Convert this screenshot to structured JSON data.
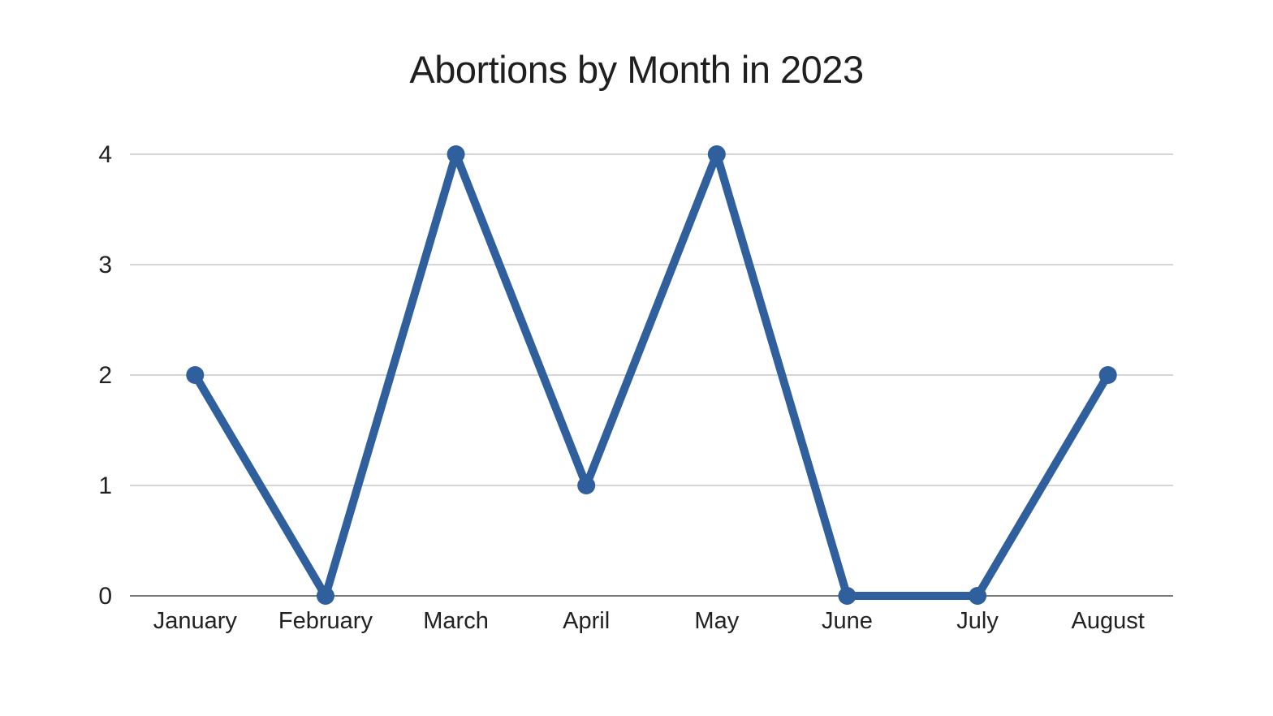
{
  "chart_data": {
    "type": "line",
    "title": "Abortions by Month in 2023",
    "categories": [
      "January",
      "February",
      "March",
      "April",
      "May",
      "June",
      "July",
      "August"
    ],
    "series": [
      {
        "name": "Abortions",
        "values": [
          2,
          0,
          4,
          1,
          4,
          0,
          0,
          2
        ]
      }
    ],
    "xlabel": "",
    "ylabel": "",
    "ylim": [
      0,
      4
    ],
    "yticks": [
      0,
      1,
      2,
      3,
      4
    ],
    "grid": true,
    "legend_position": "none",
    "colors": {
      "line": "#2F5F9C",
      "marker": "#2F5F9C",
      "gridline": "#C9C9C9",
      "axis_line": "#787878",
      "text": "#212121",
      "title_text": "#1F1F1F",
      "background": "#FFFFFF"
    }
  }
}
